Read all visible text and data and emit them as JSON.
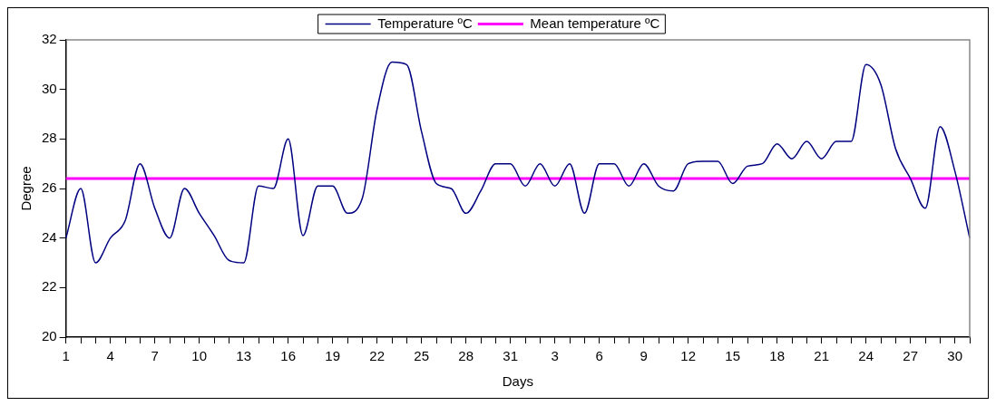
{
  "chart_data": {
    "type": "line",
    "xlabel": "Days",
    "ylabel": "Degree",
    "categories": [
      "1",
      null,
      null,
      "4",
      null,
      null,
      "7",
      null,
      null,
      "10",
      null,
      null,
      "13",
      null,
      null,
      "16",
      null,
      null,
      "19",
      null,
      null,
      "22",
      null,
      null,
      "25",
      null,
      null,
      "28",
      null,
      null,
      "31",
      null,
      null,
      "3",
      null,
      null,
      "6",
      null,
      null,
      "9",
      null,
      null,
      "12",
      null,
      null,
      "15",
      null,
      null,
      "18",
      null,
      null,
      "21",
      null,
      null,
      "24",
      null,
      null,
      "27",
      null,
      null,
      "30",
      null
    ],
    "series": [
      {
        "name": "Temperature ºC",
        "color": "#000080",
        "values": [
          24.0,
          26.0,
          23.0,
          24.0,
          24.7,
          27.0,
          25.2,
          24.0,
          26.0,
          25.0,
          24.1,
          23.1,
          23.0,
          26.1,
          26.0,
          28.0,
          24.1,
          26.1,
          26.1,
          25.0,
          25.6,
          29.2,
          31.1,
          31.0,
          28.3,
          26.2,
          26.0,
          25.0,
          25.9,
          27.0,
          27.0,
          26.1,
          27.0,
          26.1,
          27.0,
          25.0,
          27.0,
          27.0,
          26.1,
          27.0,
          26.1,
          25.9,
          27.0,
          27.1,
          27.1,
          26.2,
          26.9,
          27.0,
          27.8,
          27.2,
          27.9,
          27.2,
          27.9,
          27.9,
          31.0,
          30.2,
          27.6,
          26.4,
          25.2,
          28.5,
          26.7,
          24.0
        ]
      },
      {
        "name": "Mean temperature ºC",
        "color": "#ff00ff",
        "values": [
          26.4,
          26.4,
          26.4,
          26.4,
          26.4,
          26.4,
          26.4,
          26.4,
          26.4,
          26.4,
          26.4,
          26.4,
          26.4,
          26.4,
          26.4,
          26.4,
          26.4,
          26.4,
          26.4,
          26.4,
          26.4,
          26.4,
          26.4,
          26.4,
          26.4,
          26.4,
          26.4,
          26.4,
          26.4,
          26.4,
          26.4,
          26.4,
          26.4,
          26.4,
          26.4,
          26.4,
          26.4,
          26.4,
          26.4,
          26.4,
          26.4,
          26.4,
          26.4,
          26.4,
          26.4,
          26.4,
          26.4,
          26.4,
          26.4,
          26.4,
          26.4,
          26.4,
          26.4,
          26.4,
          26.4,
          26.4,
          26.4,
          26.4,
          26.4,
          26.4,
          26.4,
          26.4
        ]
      }
    ],
    "ylim": [
      20,
      32
    ],
    "yticks": [
      20,
      22,
      24,
      26,
      28,
      30,
      32
    ],
    "grid": false,
    "legend": "top",
    "marker": "none",
    "line_style": "solid"
  }
}
